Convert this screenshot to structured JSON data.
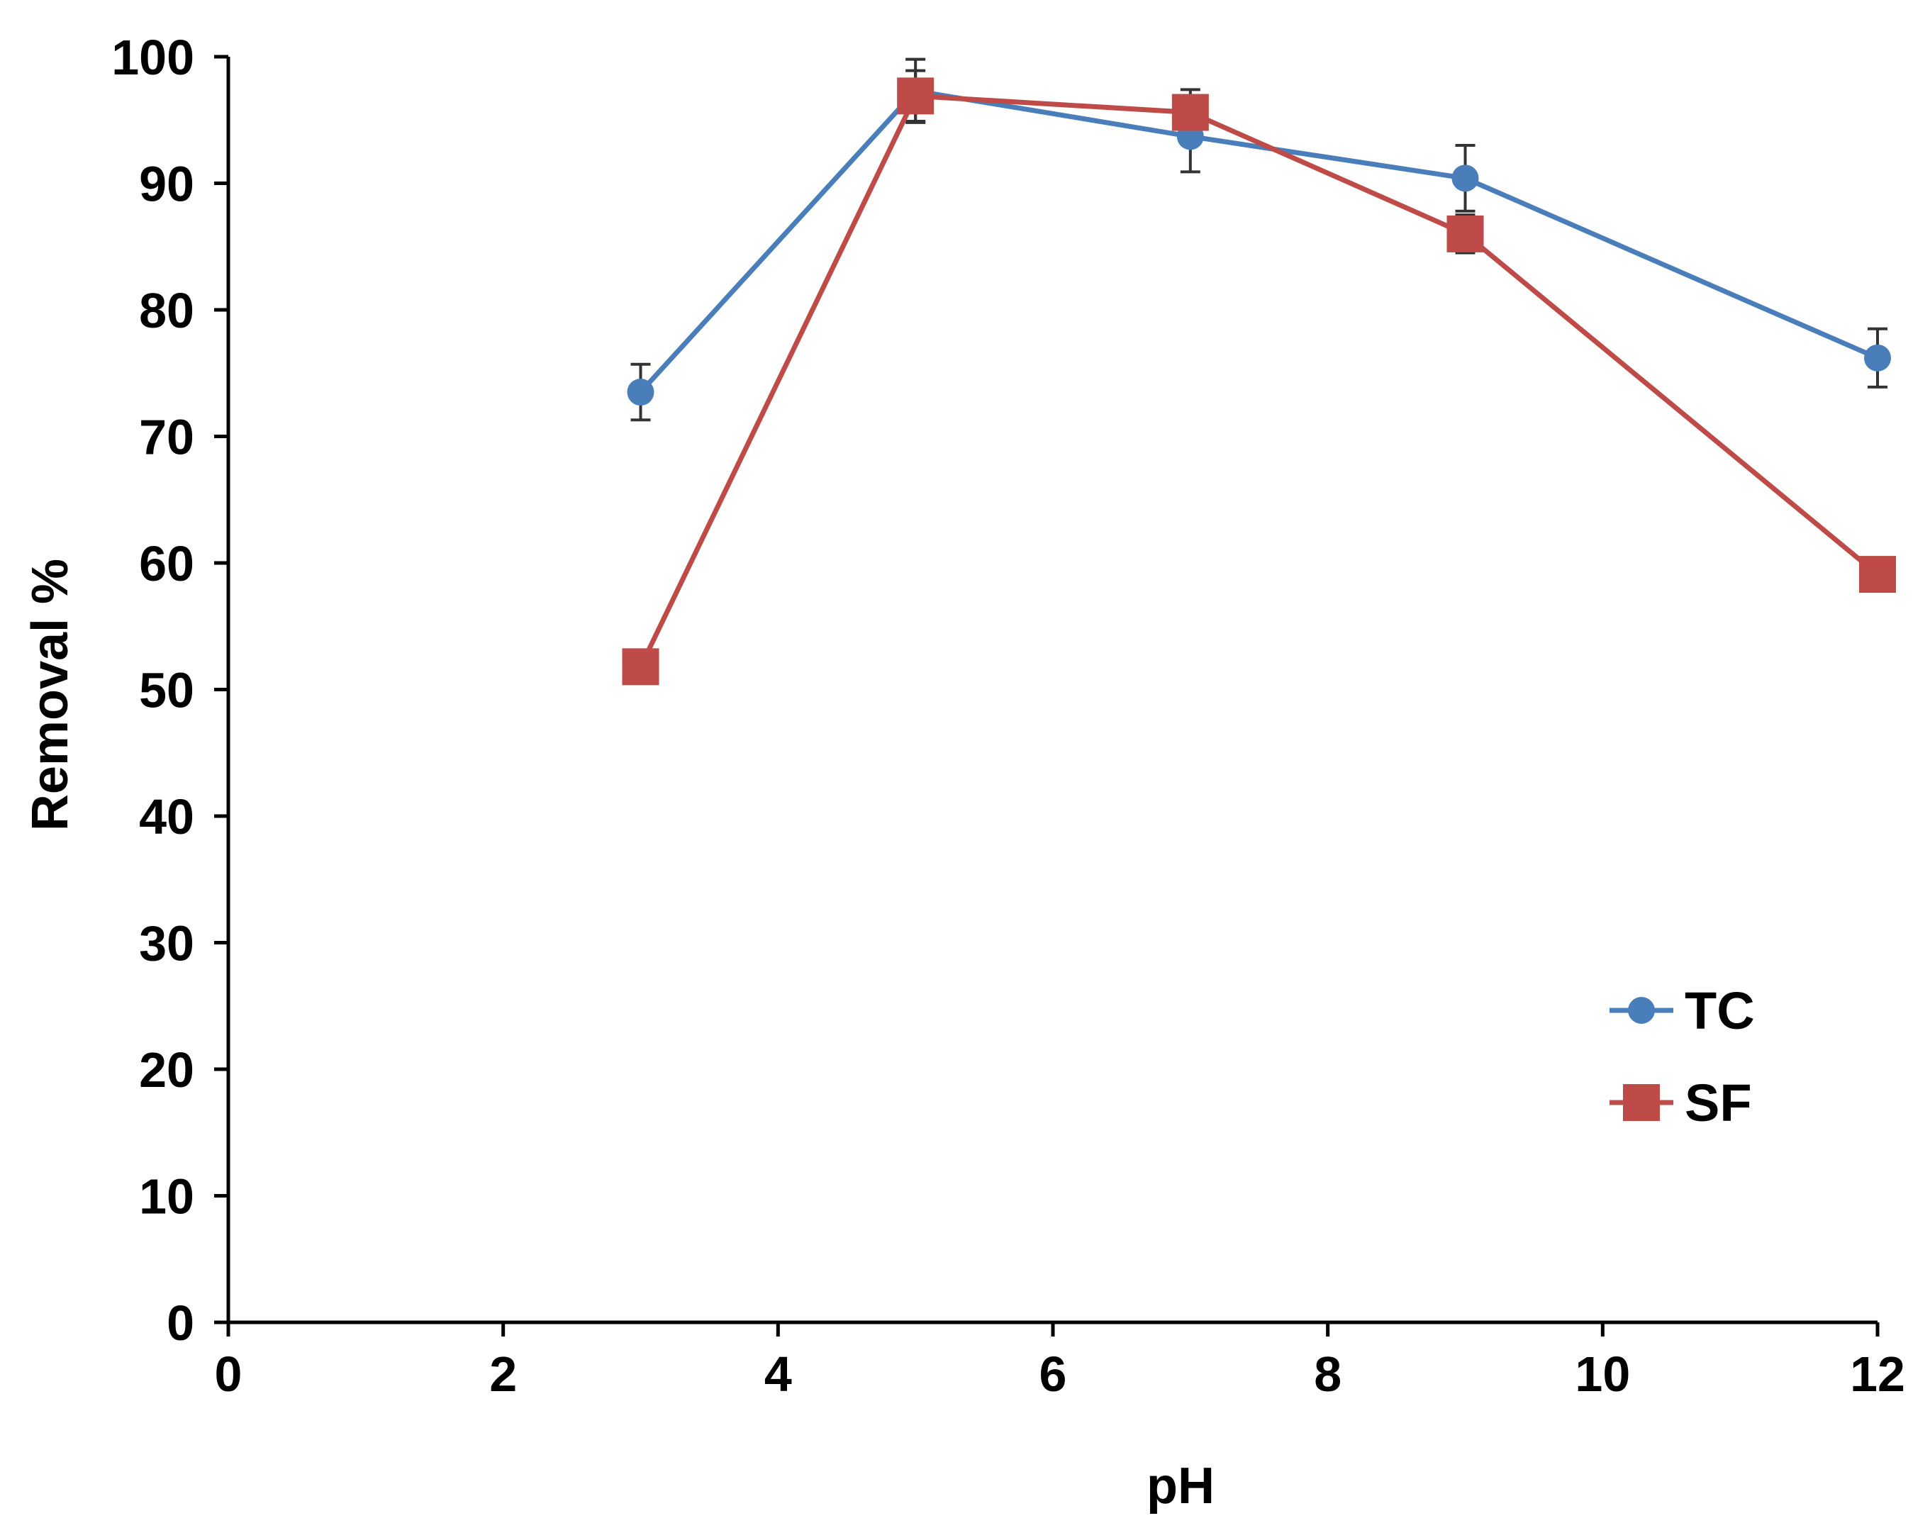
{
  "chart_data": {
    "type": "line",
    "title": "",
    "xlabel": "pH",
    "ylabel": "Removal %",
    "xlim": [
      0,
      12
    ],
    "ylim": [
      0,
      100
    ],
    "x_ticks": [
      0,
      2,
      4,
      6,
      8,
      10,
      12
    ],
    "y_ticks": [
      0,
      10,
      20,
      30,
      40,
      50,
      60,
      70,
      80,
      90,
      100
    ],
    "grid": false,
    "legend_position": "bottom-right",
    "series": [
      {
        "name": "TC",
        "color": "#4a7ebb",
        "marker": "circle",
        "x": [
          3,
          5,
          7,
          9,
          12
        ],
        "y": [
          73.5,
          97.3,
          93.7,
          90.4,
          76.2
        ],
        "error": [
          2.2,
          2.5,
          2.8,
          2.6,
          2.3
        ]
      },
      {
        "name": "SF",
        "color": "#be4b48",
        "marker": "square",
        "x": [
          3,
          5,
          7,
          9,
          12
        ],
        "y": [
          51.8,
          96.9,
          95.6,
          86.0,
          59.1
        ],
        "error": [
          0,
          2.0,
          1.8,
          1.5,
          0
        ]
      }
    ]
  }
}
